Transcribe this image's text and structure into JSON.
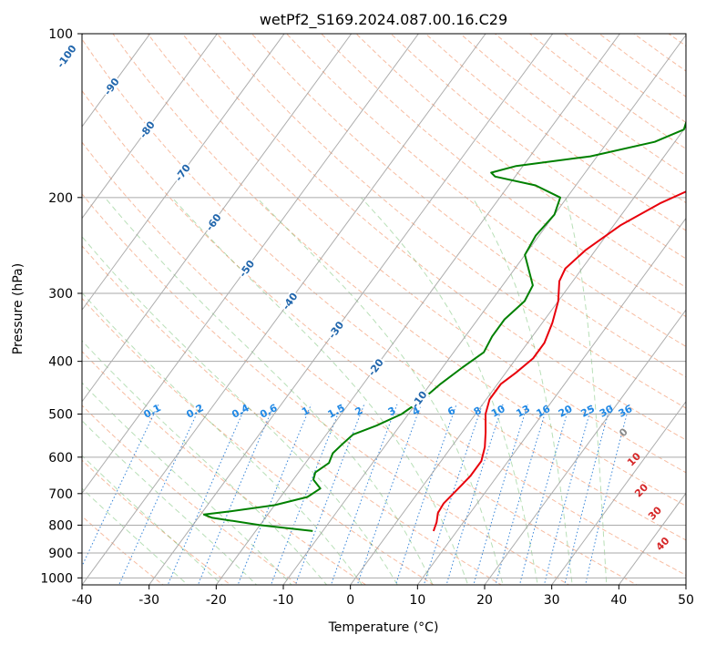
{
  "chart_data": {
    "type": "line",
    "chart_kind": "skew-T log-P diagram",
    "title": "wetPf2_S169.2024.087.00.16.C29",
    "xlabel": "Temperature (°C)",
    "ylabel": "Pressure (hPa)",
    "xlim": [
      -40,
      50
    ],
    "ylim": [
      1030,
      100
    ],
    "y_scale": "log",
    "grid": true,
    "x_ticks": [
      -40,
      -30,
      -20,
      -10,
      0,
      10,
      20,
      30,
      40,
      50
    ],
    "y_ticks": [
      100,
      200,
      300,
      400,
      500,
      600,
      700,
      800,
      900,
      1000
    ],
    "series": [
      {
        "color": "#e8000b",
        "points": [
          [
            6.5,
            820
          ],
          [
            6.0,
            790
          ],
          [
            5.2,
            760
          ],
          [
            5.0,
            730
          ],
          [
            5.5,
            690
          ],
          [
            6.0,
            650
          ],
          [
            6.0,
            610
          ],
          [
            5.0,
            575
          ],
          [
            3.5,
            540
          ],
          [
            1.5,
            500
          ],
          [
            0.5,
            470
          ],
          [
            0.5,
            440
          ],
          [
            1.5,
            420
          ],
          [
            2.5,
            395
          ],
          [
            2.5,
            370
          ],
          [
            1.5,
            340
          ],
          [
            0.0,
            310
          ],
          [
            -2.0,
            285
          ],
          [
            -2.5,
            270
          ],
          [
            -1.5,
            250
          ],
          [
            1.0,
            225
          ],
          [
            4.5,
            205
          ],
          [
            9.0,
            188
          ],
          [
            13.5,
            172
          ],
          [
            16.5,
            156
          ],
          [
            17.5,
            146
          ],
          [
            18.0,
            140
          ],
          [
            19.5,
            128
          ],
          [
            21.5,
            120
          ],
          [
            24.0,
            112
          ],
          [
            25.5,
            105
          ],
          [
            26.5,
            100
          ]
        ]
      },
      {
        "color": "#008000",
        "points": [
          [
            -11.5,
            820
          ],
          [
            -20.0,
            800
          ],
          [
            -28.0,
            775
          ],
          [
            -29.5,
            765
          ],
          [
            -26.0,
            755
          ],
          [
            -20.0,
            735
          ],
          [
            -16.0,
            710
          ],
          [
            -15.0,
            685
          ],
          [
            -17.0,
            660
          ],
          [
            -17.5,
            640
          ],
          [
            -16.5,
            615
          ],
          [
            -17.0,
            590
          ],
          [
            -16.5,
            565
          ],
          [
            -16.0,
            545
          ],
          [
            -13.5,
            525
          ],
          [
            -11.0,
            500
          ],
          [
            -9.5,
            470
          ],
          [
            -8.5,
            440
          ],
          [
            -7.0,
            410
          ],
          [
            -5.5,
            385
          ],
          [
            -6.0,
            360
          ],
          [
            -6.0,
            335
          ],
          [
            -5.0,
            310
          ],
          [
            -5.5,
            290
          ],
          [
            -8.0,
            270
          ],
          [
            -10.0,
            255
          ],
          [
            -10.5,
            235
          ],
          [
            -10.0,
            215
          ],
          [
            -11.0,
            200
          ],
          [
            -16.0,
            190
          ],
          [
            -23.0,
            183
          ],
          [
            -24.0,
            180
          ],
          [
            -21.0,
            175
          ],
          [
            -11.0,
            168
          ],
          [
            -3.0,
            158
          ],
          [
            0.0,
            150
          ],
          [
            -1.0,
            140
          ],
          [
            -1.5,
            132
          ],
          [
            -0.5,
            125
          ],
          [
            0.0,
            118
          ],
          [
            1.5,
            112
          ],
          [
            3.0,
            105
          ],
          [
            4.5,
            100
          ]
        ]
      }
    ],
    "isotherm_labels": [
      "-100",
      "-90",
      "-80",
      "-70",
      "-60",
      "-50",
      "-40",
      "-30",
      "-20",
      "-10"
    ],
    "mixing_ratio_labels": [
      "0.1",
      "0.2",
      "0.4",
      "0.6",
      "1",
      "1.5",
      "2",
      "3",
      "4",
      "6",
      "8",
      "10",
      "13",
      "16",
      "20",
      "25",
      "30",
      "36"
    ],
    "surface_temp_labels": [
      "0",
      "10",
      "20",
      "30",
      "40"
    ]
  }
}
